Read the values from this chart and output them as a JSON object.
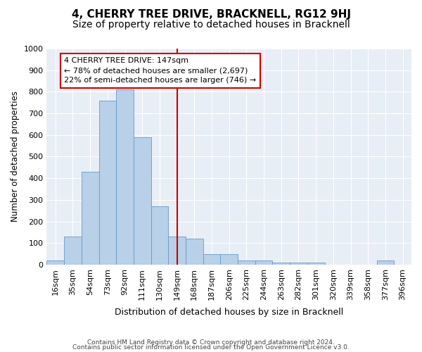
{
  "title": "4, CHERRY TREE DRIVE, BRACKNELL, RG12 9HJ",
  "subtitle": "Size of property relative to detached houses in Bracknell",
  "xlabel": "Distribution of detached houses by size in Bracknell",
  "ylabel": "Number of detached properties",
  "categories": [
    "16sqm",
    "35sqm",
    "54sqm",
    "73sqm",
    "92sqm",
    "111sqm",
    "130sqm",
    "149sqm",
    "168sqm",
    "187sqm",
    "206sqm",
    "225sqm",
    "244sqm",
    "263sqm",
    "282sqm",
    "301sqm",
    "320sqm",
    "339sqm",
    "358sqm",
    "377sqm",
    "396sqm"
  ],
  "values": [
    20,
    130,
    430,
    760,
    810,
    590,
    270,
    130,
    120,
    50,
    50,
    20,
    20,
    10,
    10,
    10,
    0,
    0,
    0,
    20,
    0
  ],
  "bar_color": "#b8d0e8",
  "bar_edge_color": "#6699cc",
  "reference_line_index": 7,
  "reference_line_color": "#cc0000",
  "annotation_line1": "4 CHERRY TREE DRIVE: 147sqm",
  "annotation_line2": "← 78% of detached houses are smaller (2,697)",
  "annotation_line3": "22% of semi-detached houses are larger (746) →",
  "annotation_box_color": "#cc0000",
  "ylim": [
    0,
    1000
  ],
  "yticks": [
    0,
    100,
    200,
    300,
    400,
    500,
    600,
    700,
    800,
    900,
    1000
  ],
  "bg_color": "#e8eef5",
  "footer1": "Contains HM Land Registry data © Crown copyright and database right 2024.",
  "footer2": "Contains public sector information licensed under the Open Government Licence v3.0.",
  "title_fontsize": 11,
  "subtitle_fontsize": 10,
  "xlabel_fontsize": 9,
  "ylabel_fontsize": 8.5,
  "tick_fontsize": 8,
  "annot_fontsize": 8
}
